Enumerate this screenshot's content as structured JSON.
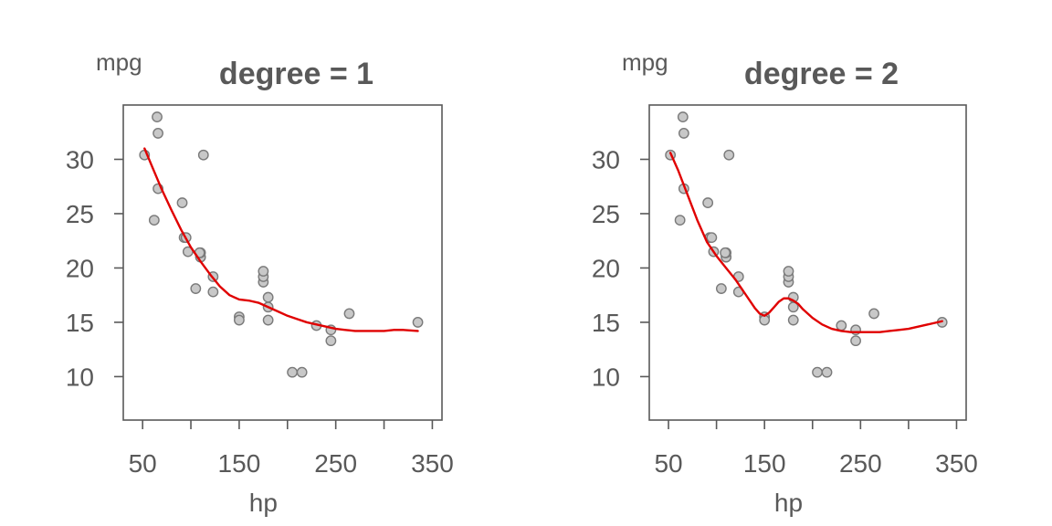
{
  "colors": {
    "points_fill": "#c8c8c8",
    "line": "#e00000",
    "text": "#595959"
  },
  "chart_data": [
    {
      "type": "scatter",
      "title": "degree = 1",
      "xlabel": "hp",
      "ylabel": "mpg",
      "xlim": [
        30,
        360
      ],
      "ylim": [
        6,
        35
      ],
      "x_ticks": [
        50,
        100,
        150,
        200,
        250,
        300,
        350
      ],
      "x_tick_labels": [
        "50",
        "",
        "150",
        "",
        "250",
        "",
        "350"
      ],
      "y_ticks": [
        10,
        15,
        20,
        25,
        30
      ],
      "y_tick_labels": [
        "10",
        "15",
        "20",
        "25",
        "30"
      ],
      "points": [
        [
          110,
          21.0
        ],
        [
          110,
          21.0
        ],
        [
          93,
          22.8
        ],
        [
          110,
          21.4
        ],
        [
          175,
          18.7
        ],
        [
          105,
          18.1
        ],
        [
          245,
          14.3
        ],
        [
          62,
          24.4
        ],
        [
          95,
          22.8
        ],
        [
          123,
          19.2
        ],
        [
          123,
          17.8
        ],
        [
          180,
          16.4
        ],
        [
          180,
          17.3
        ],
        [
          180,
          15.2
        ],
        [
          205,
          10.4
        ],
        [
          215,
          10.4
        ],
        [
          230,
          14.7
        ],
        [
          66,
          32.4
        ],
        [
          52,
          30.4
        ],
        [
          65,
          33.9
        ],
        [
          97,
          21.5
        ],
        [
          150,
          15.5
        ],
        [
          150,
          15.2
        ],
        [
          245,
          13.3
        ],
        [
          175,
          19.2
        ],
        [
          66,
          27.3
        ],
        [
          91,
          26.0
        ],
        [
          113,
          30.4
        ],
        [
          264,
          15.8
        ],
        [
          175,
          19.7
        ],
        [
          335,
          15.0
        ],
        [
          109,
          21.4
        ]
      ],
      "fit_line": {
        "x": [
          52,
          60,
          70,
          80,
          90,
          100,
          110,
          120,
          130,
          140,
          150,
          160,
          170,
          180,
          190,
          200,
          210,
          220,
          230,
          240,
          250,
          260,
          270,
          280,
          290,
          300,
          310,
          320,
          335
        ],
        "y": [
          31.0,
          29.3,
          27.2,
          25.3,
          23.5,
          21.9,
          20.6,
          19.4,
          18.3,
          17.5,
          17.1,
          17.0,
          16.8,
          16.4,
          16.0,
          15.6,
          15.3,
          15.0,
          14.8,
          14.6,
          14.4,
          14.3,
          14.2,
          14.2,
          14.2,
          14.2,
          14.3,
          14.3,
          14.2
        ]
      }
    },
    {
      "type": "scatter",
      "title": "degree = 2",
      "xlabel": "hp",
      "ylabel": "mpg",
      "xlim": [
        30,
        360
      ],
      "ylim": [
        6,
        35
      ],
      "x_ticks": [
        50,
        100,
        150,
        200,
        250,
        300,
        350
      ],
      "x_tick_labels": [
        "50",
        "",
        "150",
        "",
        "250",
        "",
        "350"
      ],
      "y_ticks": [
        10,
        15,
        20,
        25,
        30
      ],
      "y_tick_labels": [
        "10",
        "15",
        "20",
        "25",
        "30"
      ],
      "points": [
        [
          110,
          21.0
        ],
        [
          110,
          21.0
        ],
        [
          93,
          22.8
        ],
        [
          110,
          21.4
        ],
        [
          175,
          18.7
        ],
        [
          105,
          18.1
        ],
        [
          245,
          14.3
        ],
        [
          62,
          24.4
        ],
        [
          95,
          22.8
        ],
        [
          123,
          19.2
        ],
        [
          123,
          17.8
        ],
        [
          180,
          16.4
        ],
        [
          180,
          17.3
        ],
        [
          180,
          15.2
        ],
        [
          205,
          10.4
        ],
        [
          215,
          10.4
        ],
        [
          230,
          14.7
        ],
        [
          66,
          32.4
        ],
        [
          52,
          30.4
        ],
        [
          65,
          33.9
        ],
        [
          97,
          21.5
        ],
        [
          150,
          15.5
        ],
        [
          150,
          15.2
        ],
        [
          245,
          13.3
        ],
        [
          175,
          19.2
        ],
        [
          66,
          27.3
        ],
        [
          91,
          26.0
        ],
        [
          113,
          30.4
        ],
        [
          264,
          15.8
        ],
        [
          175,
          19.7
        ],
        [
          335,
          15.0
        ],
        [
          109,
          21.4
        ]
      ],
      "fit_line": {
        "x": [
          52,
          60,
          70,
          80,
          90,
          100,
          110,
          120,
          130,
          140,
          145,
          150,
          155,
          160,
          165,
          170,
          175,
          180,
          185,
          190,
          200,
          210,
          220,
          230,
          240,
          250,
          260,
          270,
          280,
          290,
          300,
          310,
          320,
          335
        ],
        "y": [
          30.6,
          29.0,
          26.7,
          24.4,
          22.4,
          21.1,
          20.0,
          18.9,
          17.6,
          16.3,
          15.8,
          15.6,
          15.9,
          16.4,
          16.9,
          17.2,
          17.2,
          17.0,
          16.7,
          16.2,
          15.4,
          14.8,
          14.4,
          14.2,
          14.1,
          14.1,
          14.1,
          14.1,
          14.2,
          14.3,
          14.4,
          14.6,
          14.8,
          15.1
        ]
      }
    }
  ]
}
